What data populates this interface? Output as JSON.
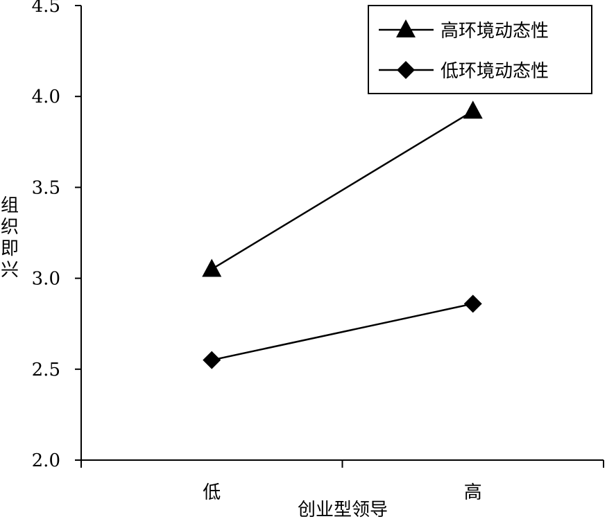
{
  "chart_data": {
    "type": "line",
    "categories": [
      "低",
      "高"
    ],
    "series": [
      {
        "name": "高环境动态性",
        "marker": "triangle",
        "values": [
          3.05,
          3.92
        ]
      },
      {
        "name": "低环境动态性",
        "marker": "diamond",
        "values": [
          2.55,
          2.86
        ]
      }
    ],
    "xlabel": "创业型领导",
    "ylabel": "组织即兴",
    "ylim": [
      2.0,
      4.5
    ],
    "yticks": [
      "2.0",
      "2.5",
      "3.0",
      "3.5",
      "4.0",
      "4.5"
    ],
    "grid": false,
    "legend_position": "top-right",
    "line_color": "#000000"
  }
}
